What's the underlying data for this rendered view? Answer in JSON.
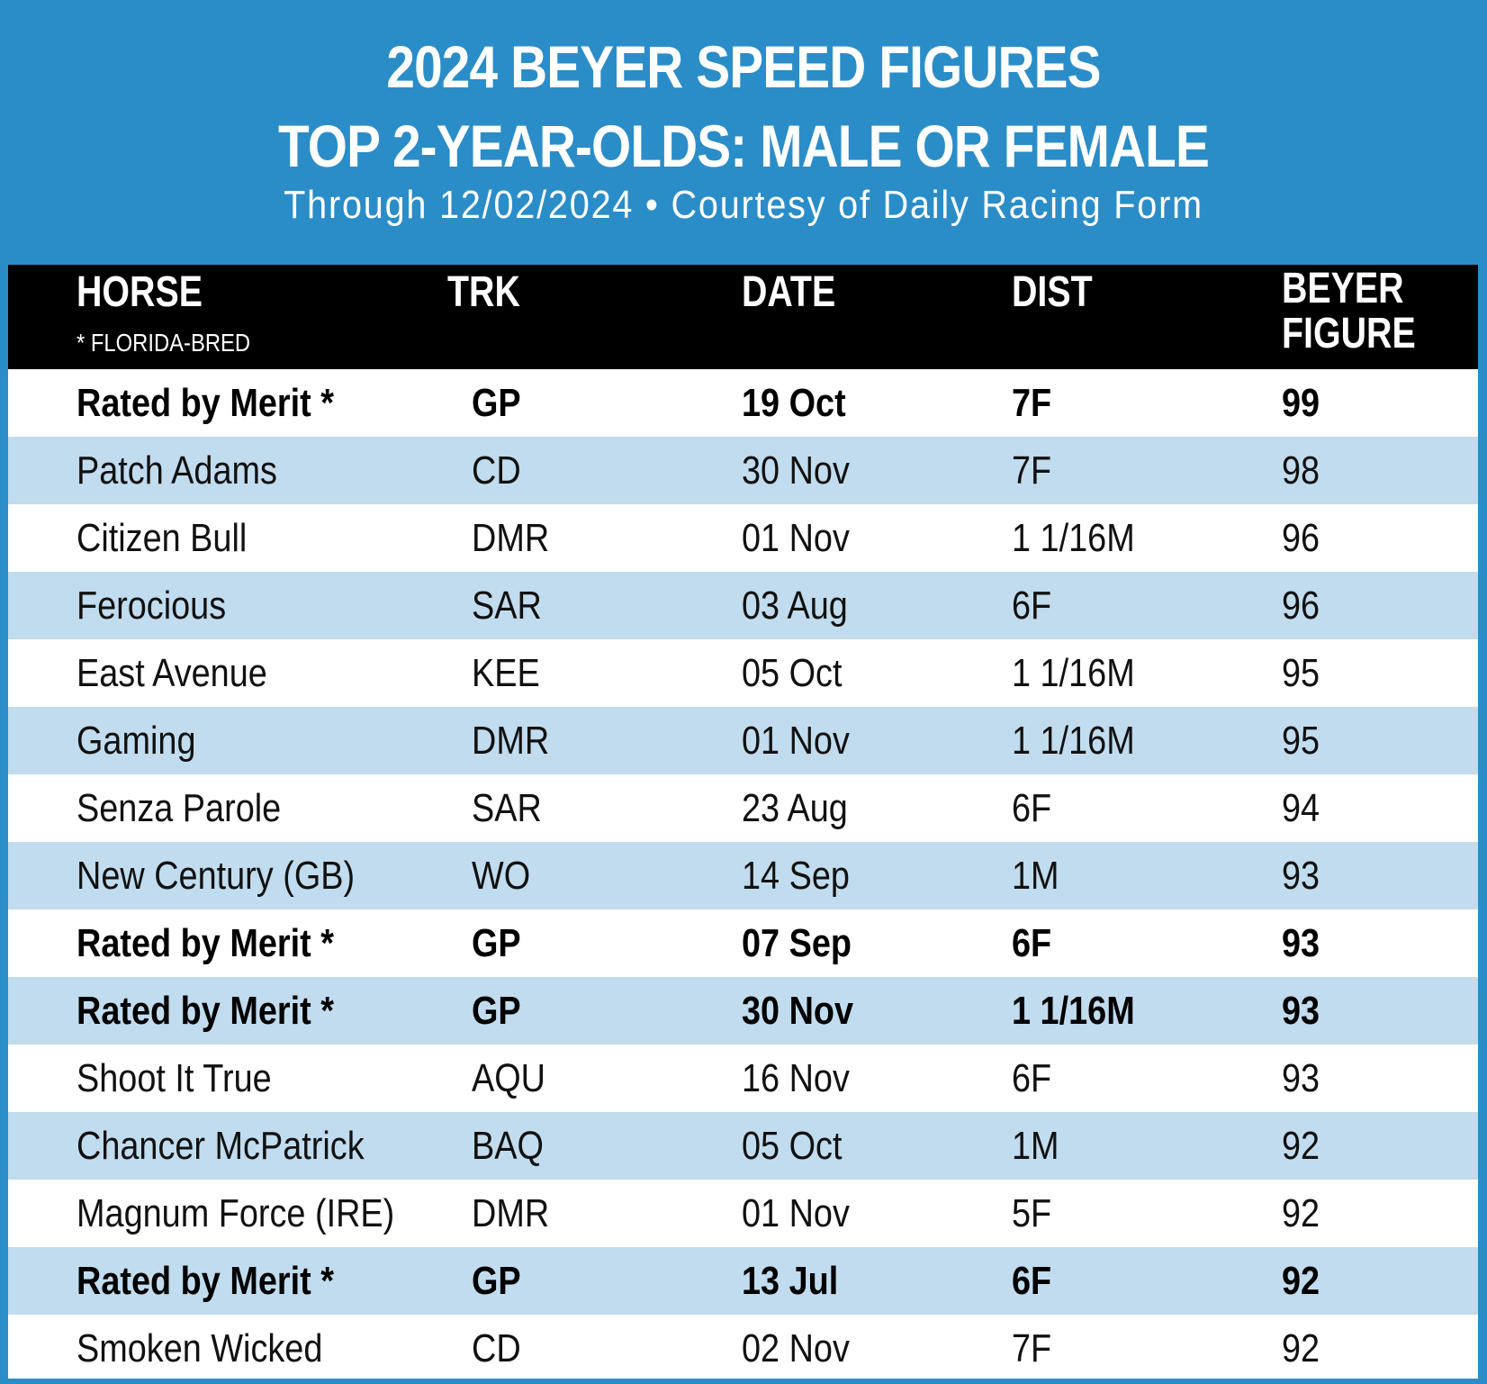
{
  "header": {
    "title_line1": "2024 BEYER SPEED FIGURES",
    "title_line2": "TOP 2-YEAR-OLDS: MALE OR FEMALE",
    "subtitle": "Through 12/02/2024 • Courtesy of Daily Racing Form"
  },
  "table": {
    "columns": {
      "horse": "HORSE",
      "horse_note": "* FLORIDA-BRED",
      "trk": "TRK",
      "date": "DATE",
      "dist": "DIST",
      "figure_line1": "BEYER",
      "figure_line2": "FIGURE"
    },
    "rows": [
      {
        "horse": "Rated by Merit *",
        "trk": "GP",
        "date": "19 Oct",
        "dist": "7F",
        "figure": "99",
        "highlight": true
      },
      {
        "horse": "Patch Adams",
        "trk": "CD",
        "date": "30 Nov",
        "dist": "7F",
        "figure": "98",
        "highlight": false
      },
      {
        "horse": "Citizen Bull",
        "trk": "DMR",
        "date": "01 Nov",
        "dist": "1 1/16M",
        "figure": "96",
        "highlight": false
      },
      {
        "horse": "Ferocious",
        "trk": "SAR",
        "date": "03 Aug",
        "dist": "6F",
        "figure": "96",
        "highlight": false
      },
      {
        "horse": "East Avenue",
        "trk": "KEE",
        "date": "05 Oct",
        "dist": "1 1/16M",
        "figure": "95",
        "highlight": false
      },
      {
        "horse": "Gaming",
        "trk": "DMR",
        "date": "01 Nov",
        "dist": "1 1/16M",
        "figure": "95",
        "highlight": false
      },
      {
        "horse": "Senza Parole",
        "trk": "SAR",
        "date": "23 Aug",
        "dist": "6F",
        "figure": "94",
        "highlight": false
      },
      {
        "horse": "New Century (GB)",
        "trk": "WO",
        "date": "14 Sep",
        "dist": "1M",
        "figure": "93",
        "highlight": false
      },
      {
        "horse": "Rated by Merit *",
        "trk": "GP",
        "date": "07 Sep",
        "dist": "6F",
        "figure": "93",
        "highlight": true
      },
      {
        "horse": "Rated by Merit *",
        "trk": "GP",
        "date": "30 Nov",
        "dist": "1 1/16M",
        "figure": "93",
        "highlight": true
      },
      {
        "horse": "Shoot It True",
        "trk": "AQU",
        "date": "16 Nov",
        "dist": "6F",
        "figure": "93",
        "highlight": false
      },
      {
        "horse": "Chancer McPatrick",
        "trk": "BAQ",
        "date": "05 Oct",
        "dist": "1M",
        "figure": "92",
        "highlight": false
      },
      {
        "horse": "Magnum Force (IRE)",
        "trk": "DMR",
        "date": "01 Nov",
        "dist": "5F",
        "figure": "92",
        "highlight": false
      },
      {
        "horse": "Rated by Merit *",
        "trk": "GP",
        "date": "13 Jul",
        "dist": "6F",
        "figure": "92",
        "highlight": true
      },
      {
        "horse": "Smoken Wicked",
        "trk": "CD",
        "date": "02 Nov",
        "dist": "7F",
        "figure": "92",
        "highlight": false
      }
    ]
  },
  "colors": {
    "frame_blue": "#2b8dc8",
    "header_black": "#000000",
    "row_alt_blue": "#c1dcee",
    "row_white": "#ffffff"
  }
}
